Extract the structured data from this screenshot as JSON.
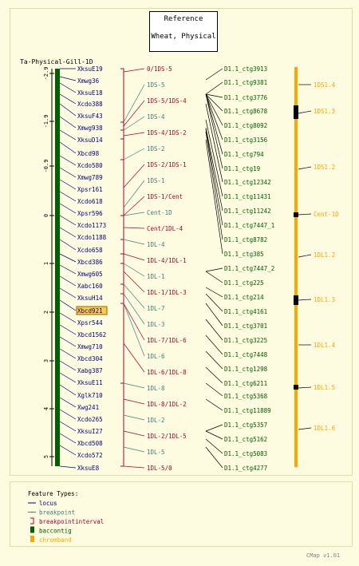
{
  "reference": {
    "line1": "Reference",
    "line2": "Wheat, Physical"
  },
  "map_title": "Ta-Physical-Gill-1D",
  "scale_ticks": [
    "-2.9",
    "-1.9",
    "-0.9",
    "0",
    "1",
    "2",
    "3",
    "4",
    "5"
  ],
  "loci": [
    "XksuE19",
    "Xmwg36",
    "XksuE18",
    "Xcdo388",
    "XksuF43",
    "Xmwg938",
    "XksuD14",
    "Xbcd98",
    "Xcdo580",
    "Xmwg789",
    "Xpsr161",
    "Xcdo618",
    "Xpsr596",
    "Xcdo1173",
    "Xcdo1188",
    "Xcdo658",
    "Xbcd386",
    "Xmwg605",
    "Xabc160",
    "XksuH14",
    "Xbcd921",
    "Xpsr544",
    "Xbcd1562",
    "Xmwg710",
    "Xbcd304",
    "Xabg387",
    "XksuE11",
    "Xglk710",
    "Xwg241",
    "Xcdo265",
    "XksuI27",
    "Xbcd508",
    "Xcdo572",
    "XksuE8"
  ],
  "highlighted_locus": "Xbcd921",
  "bins": [
    "0/1DS-5",
    "1DS-5",
    "1DS-5/1DS-4",
    "1DS-4",
    "1DS-4/1DS-2",
    "1DS-2",
    "1DS-2/1DS-1",
    "1DS-1",
    "1DS-1/Cent",
    "Cent-1D",
    "Cent/1DL-4",
    "1DL-4",
    "1DL-4/1DL-1",
    "1DL-1",
    "1DL-1/1DL-3",
    "1DL-7",
    "1DL-3",
    "1DL-7/1DL-6",
    "1DL-6",
    "1DL-6/1DL-8",
    "1DL-8",
    "1DL-8/1DL-2",
    "1DL-2",
    "1DL-2/1DL-5",
    "1DL-5",
    "1DL-5/0"
  ],
  "contigs": [
    "D1.1_ctg3913",
    "D1.1_ctg9381",
    "D1.1_ctg3776",
    "D1.1_ctg8678",
    "D1.1_ctg8092",
    "D1.1_ctg3156",
    "D1.1_ctg794",
    "D1.1_ctg19",
    "D1.1_ctg12342",
    "D1.1_ctg11431",
    "D1.1_ctg11242",
    "D1.1_ctg7447_1",
    "D1.1_ctg8782",
    "D1.1_ctg385",
    "D1.1_ctg7447_2",
    "D1.1_ctg225",
    "D1.1_ctg214",
    "D1.1_ctg4161",
    "D1.1_ctg3701",
    "D1.1_ctg3225",
    "D1.1_ctg7448",
    "D1.1_ctg1298",
    "D1.1_ctg6211",
    "D1.1_ctg5368",
    "D1.1_ctg11889",
    "D1.1_ctg5357",
    "D1.1_ctg5162",
    "D1.1_ctg5083",
    "D1.1_ctg4277"
  ],
  "chrombands": [
    "1DS1.4",
    "1DS1.3",
    "1DS1.2",
    "Cent-1D",
    "1DL1.2",
    "1DL1.3",
    "1DL1.4",
    "1DL1.5",
    "1DL1.6"
  ],
  "legend": {
    "title": "Feature Types:",
    "items": [
      {
        "label": "locus",
        "color": "#000080"
      },
      {
        "label": "breakpoint",
        "color": "#408080"
      },
      {
        "label": "breakpointinterval",
        "color": "#b00030"
      },
      {
        "label": "baccontig",
        "color": "#006000"
      },
      {
        "label": "chromband",
        "color": "#ffa500"
      }
    ]
  },
  "version": "CMap v1.01",
  "colors": {
    "locus": "#000080",
    "breakpoint": "#408080",
    "interval": "#b00030",
    "contig": "#006000",
    "band": "#ffa500",
    "highlight": "#ffcc44"
  }
}
